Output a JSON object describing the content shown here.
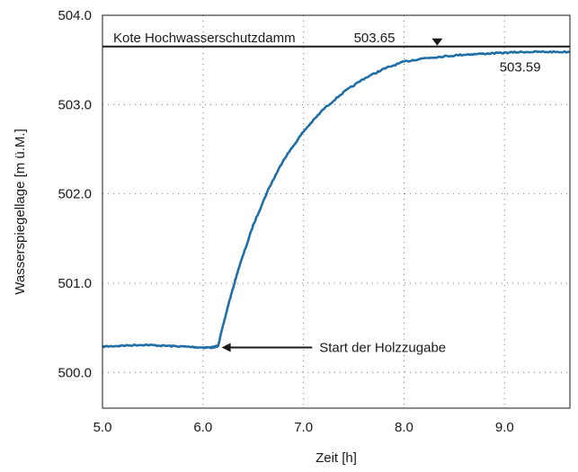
{
  "chart_data": {
    "type": "line",
    "title": "",
    "xlabel": "Zeit [h]",
    "ylabel": "Wasserspiegellage [m ü.M.]",
    "xlim": [
      5.0,
      9.65
    ],
    "ylim": [
      499.6,
      504.0
    ],
    "x_ticks": [
      5.0,
      6.0,
      7.0,
      8.0,
      9.0
    ],
    "x_tick_labels": [
      "5.0",
      "6.0",
      "7.0",
      "8.0",
      "9.0"
    ],
    "y_ticks": [
      500.0,
      501.0,
      502.0,
      503.0,
      504.0
    ],
    "y_tick_labels": [
      "500.0",
      "501.0",
      "502.0",
      "503.0",
      "504.0"
    ],
    "grid": true,
    "grid_style": "dotted",
    "series": [
      {
        "color": "#1f6fa6",
        "x": [
          5.0,
          5.2,
          5.4,
          5.6,
          5.8,
          6.0,
          6.1,
          6.15,
          6.25,
          6.35,
          6.5,
          6.65,
          6.8,
          7.0,
          7.2,
          7.4,
          7.6,
          7.8,
          8.0,
          8.2,
          8.4,
          8.6,
          8.8,
          9.0,
          9.2,
          9.4,
          9.65
        ],
        "y": [
          500.29,
          500.3,
          500.31,
          500.3,
          500.29,
          500.28,
          500.28,
          500.3,
          500.75,
          501.15,
          501.65,
          502.05,
          502.38,
          502.7,
          502.95,
          503.14,
          503.29,
          503.4,
          503.48,
          503.52,
          503.54,
          503.56,
          503.57,
          503.58,
          503.59,
          503.59,
          503.59
        ]
      }
    ],
    "reference_line": {
      "label": "Kote Hochwasserschutzdamm",
      "value_label": "503.65",
      "y": 503.65,
      "marker_x": 8.33,
      "color": "#1a1a1a"
    },
    "annotations": [
      {
        "text": "503.59",
        "x": 8.95,
        "y": 503.35
      },
      {
        "text": "Start der Holzzugabe",
        "x": 7.05,
        "y": 500.28,
        "arrow_to_x": 6.15,
        "arrow_to_y": 500.28
      }
    ]
  }
}
